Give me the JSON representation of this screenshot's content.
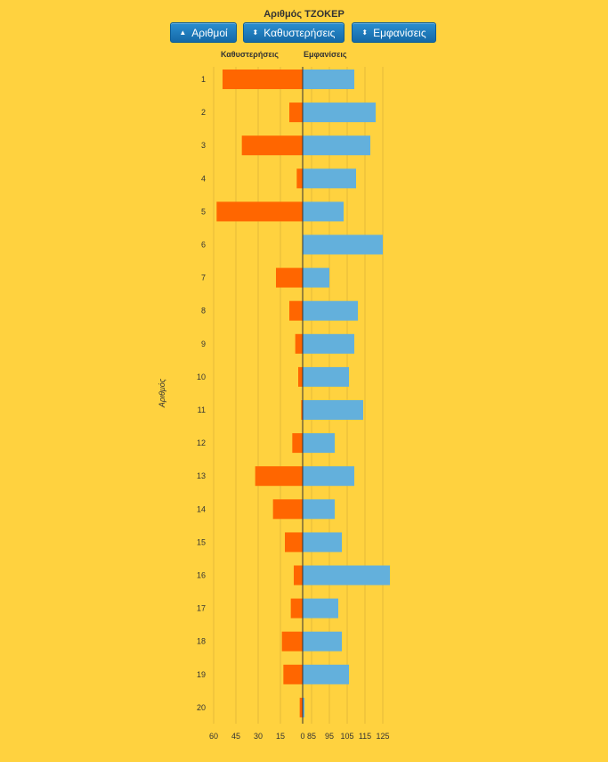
{
  "title": "Αριθμός ΤΖΟΚΕΡ",
  "buttons": [
    {
      "label": "Αριθμοί",
      "icon": "▲"
    },
    {
      "label": "Καθυστερήσεις",
      "icon": "⬍"
    },
    {
      "label": "Εμφανίσεις",
      "icon": "⬍"
    }
  ],
  "chart_data": {
    "type": "bar",
    "layout": "diverging-horizontal",
    "categories": [
      "1",
      "2",
      "3",
      "4",
      "5",
      "6",
      "7",
      "8",
      "9",
      "10",
      "11",
      "12",
      "13",
      "14",
      "15",
      "16",
      "17",
      "18",
      "19",
      "20"
    ],
    "series": [
      {
        "name": "Καθυστερήσεις",
        "color": "#FF6600",
        "values": [
          54,
          9,
          41,
          4,
          58,
          0,
          18,
          9,
          5,
          3,
          1,
          7,
          32,
          20,
          12,
          6,
          8,
          14,
          13,
          2
        ]
      },
      {
        "name": "Εμφανίσεις",
        "color": "#63B0DC",
        "values": [
          109,
          121,
          118,
          110,
          103,
          125,
          95,
          111,
          109,
          106,
          114,
          98,
          109,
          98,
          102,
          129,
          100,
          102,
          106,
          81
        ]
      }
    ],
    "left_header": "Καθυστερήσεις",
    "right_header": "Εμφανίσεις",
    "ylabel": "Αριθμός",
    "left_ticks": [
      "60",
      "45",
      "30",
      "15",
      "0"
    ],
    "right_ticks": [
      "85",
      "95",
      "105",
      "115",
      "125"
    ],
    "left_range": [
      0,
      60
    ],
    "right_range": [
      80,
      130
    ],
    "grid": true,
    "colors": {
      "background": "#FFD23F",
      "delays": "#FF6600",
      "appearances": "#63B0DC"
    }
  }
}
